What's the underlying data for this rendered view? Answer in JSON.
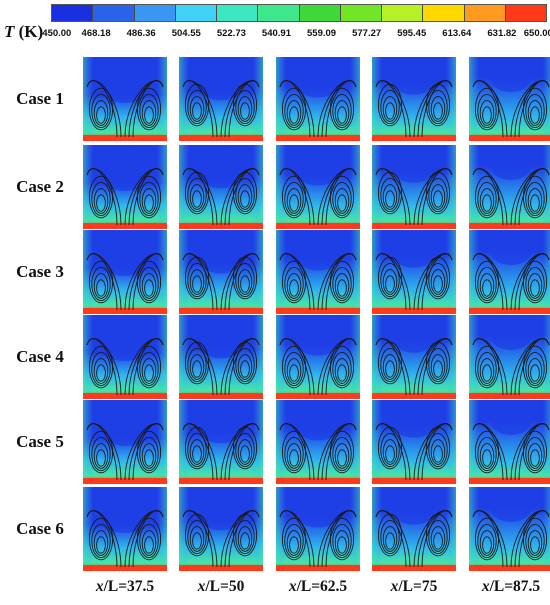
{
  "colorbar": {
    "symbol": "T",
    "unit": " (K)",
    "ticks": [
      "450.00",
      "468.18",
      "486.36",
      "504.55",
      "522.73",
      "540.91",
      "559.09",
      "577.27",
      "595.45",
      "613.64",
      "631.82",
      "650.00"
    ],
    "colors": [
      "#1a2fe0",
      "#2a63ea",
      "#3a96f0",
      "#40d2f4",
      "#3ce6c0",
      "#3ee68c",
      "#3ed838",
      "#72e626",
      "#b8f028",
      "#ffd800",
      "#ff9a20",
      "#ff3a1a"
    ]
  },
  "rows": [
    {
      "label": "Case 1"
    },
    {
      "label": "Case 2"
    },
    {
      "label": "Case 3"
    },
    {
      "label": "Case 4"
    },
    {
      "label": "Case 5"
    },
    {
      "label": "Case 6"
    }
  ],
  "columns": [
    {
      "var": "x",
      "text": "/L=37.5"
    },
    {
      "var": "x",
      "text": "/L=50"
    },
    {
      "var": "x",
      "text": "/L=62.5"
    },
    {
      "var": "x",
      "text": "/L=75"
    },
    {
      "var": "x",
      "text": "/L=87.5"
    }
  ],
  "fields": {
    "cold": "#1f3fe6",
    "mid": "#2fb6ee",
    "warm": "#46e6a6",
    "hot_edge": "#ff3a1a",
    "streamline": "#1a1a1a"
  }
}
